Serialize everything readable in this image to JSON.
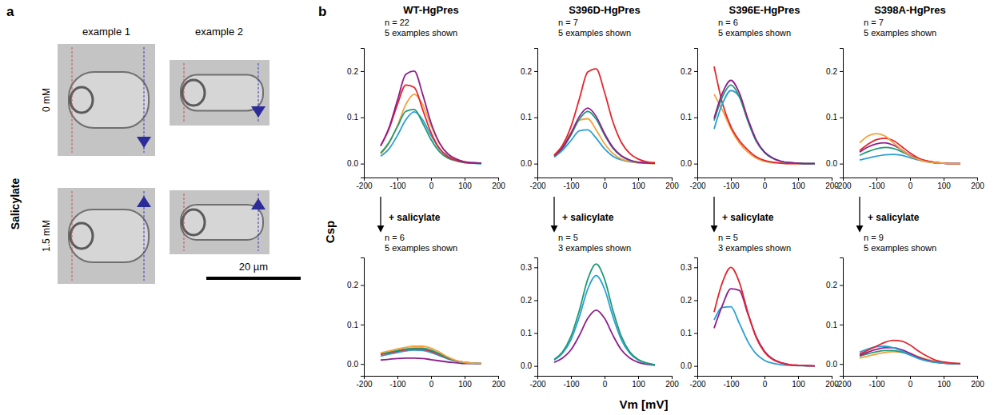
{
  "panel_a": {
    "letter": "a",
    "row_title": "Salicylate",
    "columns": [
      "example 1",
      "example 2"
    ],
    "rows": [
      "0 mM",
      "1.5 mM"
    ],
    "scale_bar": "20 µm"
  },
  "figure": {
    "letter": "b",
    "y_label": "Csp",
    "x_label": "Vm [mV]",
    "transition_label": "+ salicylate"
  },
  "chart_data": [
    {
      "type": "line",
      "title": "WT-HgPres",
      "annotations": [
        "n = 22",
        "5 examples shown"
      ],
      "x": [
        -150,
        -125,
        -100,
        -75,
        -50,
        -25,
        0,
        25,
        50,
        75,
        100,
        125,
        150
      ],
      "xlim": [
        -200,
        200
      ],
      "xticks": [
        -200,
        -100,
        0,
        100,
        200
      ],
      "ylim": [
        -0.03,
        0.25
      ],
      "yticks": [
        {
          "value": 0,
          "label": "0.0"
        },
        0.1,
        0.2
      ],
      "series": [
        {
          "color": "#f4a13a",
          "values": [
            0.021,
            0.044,
            0.082,
            0.128,
            0.15,
            0.128,
            0.082,
            0.044,
            0.021,
            0.01,
            0.004,
            0.002,
            0.001
          ]
        },
        {
          "color": "#2a9fd6",
          "values": [
            0.016,
            0.032,
            0.061,
            0.095,
            0.112,
            0.095,
            0.061,
            0.032,
            0.016,
            0.007,
            0.003,
            0.001,
            0.0
          ]
        },
        {
          "color": "#1f9b74",
          "values": [
            0.023,
            0.046,
            0.08,
            0.113,
            0.117,
            0.088,
            0.052,
            0.026,
            0.012,
            0.006,
            0.002,
            0.001,
            0.0
          ]
        },
        {
          "color": "#e3262d",
          "values": [
            0.038,
            0.075,
            0.128,
            0.17,
            0.165,
            0.117,
            0.067,
            0.033,
            0.015,
            0.007,
            0.003,
            0.001,
            0.001
          ]
        },
        {
          "color": "#8e1f8e",
          "values": [
            0.039,
            0.078,
            0.137,
            0.193,
            0.2,
            0.15,
            0.088,
            0.045,
            0.021,
            0.01,
            0.004,
            0.002,
            0.001
          ]
        }
      ]
    },
    {
      "type": "line",
      "title": "S396D-HgPres",
      "annotations": [
        "n = 7",
        "5 examples shown"
      ],
      "x": [
        -150,
        -125,
        -100,
        -75,
        -50,
        -25,
        0,
        25,
        50,
        75,
        100,
        125,
        150
      ],
      "xlim": [
        -200,
        200
      ],
      "xticks": [
        -200,
        -100,
        0,
        100,
        200
      ],
      "ylim": [
        -0.03,
        0.25
      ],
      "yticks": [
        {
          "value": 0,
          "label": "0.0"
        },
        0.1,
        0.2
      ],
      "series": [
        {
          "color": "#2a9fd6",
          "values": [
            0.014,
            0.029,
            0.05,
            0.071,
            0.073,
            0.055,
            0.032,
            0.016,
            0.008,
            0.004,
            0.002,
            0.001,
            0.0
          ]
        },
        {
          "color": "#f4a13a",
          "values": [
            0.019,
            0.038,
            0.067,
            0.094,
            0.097,
            0.073,
            0.043,
            0.022,
            0.01,
            0.005,
            0.002,
            0.001,
            0.0
          ]
        },
        {
          "color": "#1f9b74",
          "values": [
            0.016,
            0.033,
            0.062,
            0.096,
            0.113,
            0.096,
            0.062,
            0.033,
            0.016,
            0.007,
            0.003,
            0.001,
            0.001
          ]
        },
        {
          "color": "#8e1f8e",
          "values": [
            0.017,
            0.035,
            0.065,
            0.102,
            0.12,
            0.102,
            0.065,
            0.035,
            0.017,
            0.008,
            0.003,
            0.002,
            0.001
          ]
        },
        {
          "color": "#e3262d",
          "values": [
            0.018,
            0.04,
            0.08,
            0.14,
            0.198,
            0.205,
            0.154,
            0.09,
            0.046,
            0.022,
            0.01,
            0.004,
            0.002
          ]
        }
      ]
    },
    {
      "type": "line",
      "title": "S396E-HgPres",
      "annotations": [
        "n = 6",
        "5 examples shown"
      ],
      "x": [
        -150,
        -125,
        -100,
        -75,
        -50,
        -25,
        0,
        25,
        50,
        75,
        100,
        125,
        150
      ],
      "xlim": [
        -200,
        200
      ],
      "xticks": [
        -200,
        -100,
        0,
        100,
        200
      ],
      "ylim": [
        -0.03,
        0.25
      ],
      "yticks": [
        {
          "value": 0,
          "label": "0.0"
        },
        0.1,
        0.2
      ],
      "series": [
        {
          "color": "#f4a13a",
          "values": [
            0.15,
            0.115,
            0.075,
            0.045,
            0.025,
            0.012,
            0.005,
            0.002,
            0.001,
            0.0,
            0.0,
            0.0,
            0.0
          ]
        },
        {
          "color": "#e3262d",
          "values": [
            0.21,
            0.13,
            0.08,
            0.05,
            0.03,
            0.015,
            0.007,
            0.003,
            0.001,
            0.0,
            0.0,
            0.0,
            0.0
          ]
        },
        {
          "color": "#2a9fd6",
          "values": [
            0.075,
            0.13,
            0.158,
            0.145,
            0.095,
            0.05,
            0.025,
            0.012,
            0.005,
            0.002,
            0.001,
            0.0,
            0.0
          ]
        },
        {
          "color": "#1f9b74",
          "values": [
            0.093,
            0.145,
            0.17,
            0.145,
            0.093,
            0.049,
            0.024,
            0.011,
            0.005,
            0.002,
            0.001,
            0.0,
            0.0
          ]
        },
        {
          "color": "#8e1f8e",
          "values": [
            0.098,
            0.153,
            0.18,
            0.153,
            0.098,
            0.052,
            0.025,
            0.012,
            0.005,
            0.002,
            0.001,
            0.0,
            0.0
          ]
        }
      ]
    },
    {
      "type": "line",
      "title": "S398A-HgPres",
      "annotations": [
        "n = 7",
        "5 examples shown"
      ],
      "x": [
        -150,
        -125,
        -100,
        -75,
        -50,
        -25,
        0,
        25,
        50,
        75,
        100,
        125,
        150
      ],
      "xlim": [
        -200,
        200
      ],
      "xticks": [
        -200,
        -100,
        0,
        100,
        200
      ],
      "ylim": [
        -0.03,
        0.25
      ],
      "yticks": [
        {
          "value": 0,
          "label": "0.0"
        },
        0.1,
        0.2
      ],
      "series": [
        {
          "color": "#2a9fd6",
          "values": [
            0.008,
            0.012,
            0.016,
            0.019,
            0.02,
            0.018,
            0.013,
            0.008,
            0.004,
            0.002,
            0.001,
            0.0,
            0.0
          ]
        },
        {
          "color": "#1f9b74",
          "values": [
            0.018,
            0.026,
            0.032,
            0.035,
            0.033,
            0.026,
            0.017,
            0.009,
            0.005,
            0.002,
            0.001,
            0.0,
            0.0
          ]
        },
        {
          "color": "#8e1f8e",
          "values": [
            0.025,
            0.036,
            0.043,
            0.045,
            0.04,
            0.03,
            0.018,
            0.01,
            0.005,
            0.002,
            0.001,
            0.0,
            0.0
          ]
        },
        {
          "color": "#e3262d",
          "values": [
            0.028,
            0.042,
            0.052,
            0.055,
            0.05,
            0.037,
            0.023,
            0.012,
            0.006,
            0.003,
            0.001,
            0.0,
            0.0
          ]
        },
        {
          "color": "#f4a13a",
          "values": [
            0.045,
            0.06,
            0.065,
            0.06,
            0.045,
            0.03,
            0.017,
            0.009,
            0.004,
            0.002,
            0.001,
            0.0,
            0.0
          ]
        }
      ]
    },
    {
      "type": "line",
      "annotations": [
        "n = 6",
        "5 examples shown"
      ],
      "x": [
        -150,
        -125,
        -100,
        -75,
        -50,
        -25,
        0,
        25,
        50,
        75,
        100,
        125,
        150
      ],
      "xlim": [
        -200,
        200
      ],
      "xticks": [
        -200,
        -100,
        0,
        100,
        200
      ],
      "ylim": [
        -0.03,
        0.27
      ],
      "yticks": [
        {
          "value": 0,
          "label": "0.0"
        },
        0.1,
        0.2
      ],
      "series": [
        {
          "color": "#8e1f8e",
          "values": [
            0.01,
            0.012,
            0.014,
            0.015,
            0.015,
            0.014,
            0.011,
            0.008,
            0.005,
            0.003,
            0.001,
            0.001,
            0.0
          ]
        },
        {
          "color": "#2a9fd6",
          "values": [
            0.02,
            0.025,
            0.029,
            0.033,
            0.035,
            0.034,
            0.029,
            0.021,
            0.013,
            0.007,
            0.003,
            0.001,
            0.001
          ]
        },
        {
          "color": "#e3262d",
          "values": [
            0.024,
            0.028,
            0.032,
            0.036,
            0.038,
            0.037,
            0.032,
            0.024,
            0.015,
            0.008,
            0.004,
            0.002,
            0.001
          ]
        },
        {
          "color": "#1f9b74",
          "values": [
            0.026,
            0.03,
            0.034,
            0.038,
            0.04,
            0.04,
            0.035,
            0.026,
            0.016,
            0.008,
            0.004,
            0.002,
            0.001
          ]
        },
        {
          "color": "#f4a13a",
          "values": [
            0.028,
            0.033,
            0.038,
            0.042,
            0.045,
            0.045,
            0.04,
            0.03,
            0.018,
            0.009,
            0.004,
            0.002,
            0.001
          ]
        }
      ]
    },
    {
      "type": "line",
      "annotations": [
        "n = 5",
        "3 examples shown"
      ],
      "x": [
        -150,
        -125,
        -100,
        -75,
        -50,
        -25,
        0,
        25,
        50,
        75,
        100,
        125,
        150
      ],
      "xlim": [
        -200,
        200
      ],
      "xticks": [
        -200,
        -100,
        0,
        100,
        200
      ],
      "ylim": [
        -0.03,
        0.33
      ],
      "yticks": [
        {
          "value": 0,
          "label": "0.0"
        },
        0.1,
        0.2,
        0.3
      ],
      "series": [
        {
          "color": "#8e1f8e",
          "values": [
            0.011,
            0.024,
            0.049,
            0.093,
            0.145,
            0.17,
            0.145,
            0.093,
            0.049,
            0.024,
            0.011,
            0.005,
            0.002
          ]
        },
        {
          "color": "#2a9fd6",
          "values": [
            0.018,
            0.039,
            0.08,
            0.15,
            0.234,
            0.275,
            0.234,
            0.15,
            0.08,
            0.039,
            0.018,
            0.008,
            0.003
          ]
        },
        {
          "color": "#1f9b74",
          "values": [
            0.02,
            0.043,
            0.09,
            0.169,
            0.264,
            0.31,
            0.264,
            0.169,
            0.09,
            0.043,
            0.02,
            0.009,
            0.004
          ]
        }
      ]
    },
    {
      "type": "line",
      "annotations": [
        "n = 5",
        "3 examples shown"
      ],
      "x": [
        -150,
        -125,
        -100,
        -75,
        -50,
        -25,
        0,
        25,
        50,
        75,
        100,
        125,
        150
      ],
      "xlim": [
        -200,
        200
      ],
      "xticks": [
        -200,
        -100,
        0,
        100,
        200
      ],
      "ylim": [
        -0.03,
        0.33
      ],
      "yticks": [
        {
          "value": 0,
          "label": "0.0"
        },
        0.1,
        0.2,
        0.3
      ],
      "series": [
        {
          "color": "#2a9fd6",
          "values": [
            0.14,
            0.178,
            0.18,
            0.13,
            0.075,
            0.037,
            0.017,
            0.008,
            0.004,
            0.002,
            0.001,
            0.0,
            0.0
          ]
        },
        {
          "color": "#8e1f8e",
          "values": [
            0.115,
            0.185,
            0.235,
            0.23,
            0.16,
            0.09,
            0.045,
            0.021,
            0.01,
            0.004,
            0.002,
            0.001,
            0.0
          ]
        },
        {
          "color": "#e3262d",
          "values": [
            0.164,
            0.255,
            0.3,
            0.255,
            0.164,
            0.087,
            0.042,
            0.019,
            0.009,
            0.004,
            0.002,
            0.001,
            0.0
          ]
        }
      ]
    },
    {
      "type": "line",
      "annotations": [
        "n = 9",
        "5 examples shown"
      ],
      "x": [
        -150,
        -125,
        -100,
        -75,
        -50,
        -25,
        0,
        25,
        50,
        75,
        100,
        125,
        150
      ],
      "xlim": [
        -200,
        200
      ],
      "xticks": [
        -200,
        -100,
        0,
        100,
        200
      ],
      "ylim": [
        -0.03,
        0.27
      ],
      "yticks": [
        {
          "value": 0,
          "label": "0.0"
        },
        0.1,
        0.2
      ],
      "series": [
        {
          "color": "#f4a13a",
          "values": [
            0.015,
            0.02,
            0.025,
            0.029,
            0.031,
            0.03,
            0.026,
            0.019,
            0.012,
            0.007,
            0.003,
            0.002,
            0.001
          ]
        },
        {
          "color": "#1f9b74",
          "values": [
            0.02,
            0.026,
            0.031,
            0.034,
            0.034,
            0.03,
            0.023,
            0.015,
            0.008,
            0.004,
            0.002,
            0.001,
            0.0
          ]
        },
        {
          "color": "#8e1f8e",
          "values": [
            0.022,
            0.03,
            0.037,
            0.041,
            0.041,
            0.036,
            0.027,
            0.017,
            0.01,
            0.005,
            0.002,
            0.001,
            0.0
          ]
        },
        {
          "color": "#2a9fd6",
          "values": [
            0.03,
            0.038,
            0.044,
            0.045,
            0.041,
            0.033,
            0.023,
            0.014,
            0.008,
            0.004,
            0.002,
            0.001,
            0.0
          ]
        },
        {
          "color": "#e3262d",
          "values": [
            0.025,
            0.035,
            0.045,
            0.055,
            0.06,
            0.058,
            0.048,
            0.033,
            0.02,
            0.01,
            0.005,
            0.002,
            0.001
          ]
        }
      ]
    }
  ]
}
